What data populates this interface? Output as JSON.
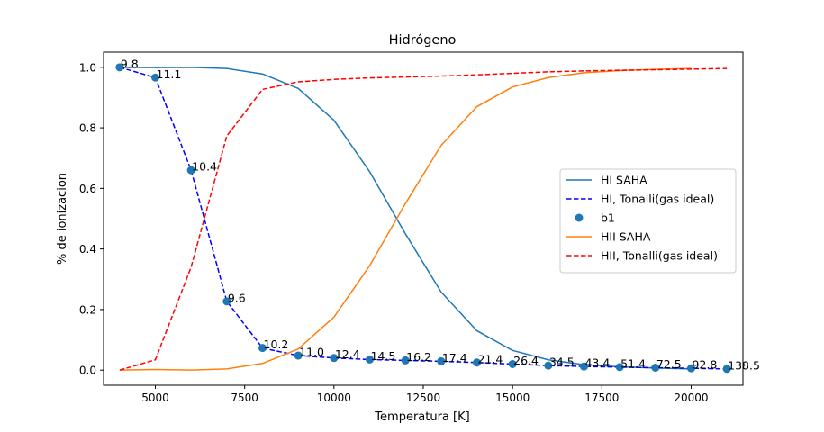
{
  "chart_data": {
    "type": "line",
    "title": "Hidrógeno",
    "xlabel": "Temperatura [K]",
    "ylabel": "% de ionizacion",
    "xlim": [
      3550,
      21450
    ],
    "ylim": [
      -0.05,
      1.05
    ],
    "xticks": [
      5000,
      7500,
      10000,
      12500,
      15000,
      17500,
      20000
    ],
    "xtick_labels": [
      "5000",
      "7500",
      "10000",
      "12500",
      "15000",
      "17500",
      "20000"
    ],
    "yticks": [
      0.0,
      0.2,
      0.4,
      0.6,
      0.8,
      1.0
    ],
    "ytick_labels": [
      "0.0",
      "0.2",
      "0.4",
      "0.6",
      "0.8",
      "1.0"
    ],
    "grid": false,
    "legend_position": "center-right",
    "series": [
      {
        "name": "HI SAHA",
        "style": "solid",
        "color": "#1f77b4",
        "x": [
          4000,
          5000,
          6000,
          7000,
          8000,
          9000,
          10000,
          11000,
          12000,
          13000,
          14000,
          15000,
          16000,
          17000,
          18000,
          19000,
          20000
        ],
        "y": [
          1.0,
          0.999,
          1.0,
          0.996,
          0.978,
          0.93,
          0.825,
          0.655,
          0.45,
          0.258,
          0.13,
          0.065,
          0.034,
          0.018,
          0.011,
          0.007,
          0.004
        ]
      },
      {
        "name": "HI, Tonalli(gas ideal)",
        "style": "dashed",
        "color": "#0000ff",
        "x": [
          4000,
          5000,
          6000,
          7000,
          8000,
          9000,
          10000,
          11000,
          12000,
          13000,
          14000,
          15000,
          16000,
          17000,
          18000,
          19000,
          20000,
          21000
        ],
        "y": [
          1.0,
          0.966,
          0.66,
          0.227,
          0.073,
          0.048,
          0.04,
          0.035,
          0.032,
          0.029,
          0.025,
          0.02,
          0.015,
          0.012,
          0.01,
          0.008,
          0.006,
          0.004
        ]
      },
      {
        "name": "b1",
        "style": "scatter",
        "color": "#1f77b4",
        "x": [
          4000,
          5000,
          6000,
          7000,
          8000,
          9000,
          10000,
          11000,
          12000,
          13000,
          14000,
          15000,
          16000,
          17000,
          18000,
          19000,
          20000,
          21000
        ],
        "y": [
          1.0,
          0.966,
          0.66,
          0.227,
          0.073,
          0.048,
          0.04,
          0.035,
          0.032,
          0.029,
          0.025,
          0.02,
          0.015,
          0.012,
          0.01,
          0.008,
          0.006,
          0.004
        ],
        "labels": [
          "9.8",
          "11.1",
          "10.4",
          "9.6",
          "10.2",
          "11.0",
          "12.4",
          "14.5",
          "16.2",
          "17.4",
          "21.4",
          "26.4",
          "34.5",
          "43.4",
          "51.4",
          "72.5",
          "92.8",
          "138.5"
        ]
      },
      {
        "name": "HII SAHA",
        "style": "solid",
        "color": "#ff7f0e",
        "x": [
          4000,
          5000,
          6000,
          7000,
          8000,
          9000,
          10000,
          11000,
          12000,
          13000,
          14000,
          15000,
          16000,
          17000,
          18000,
          19000,
          20000
        ],
        "y": [
          0.0,
          0.002,
          0.0,
          0.004,
          0.022,
          0.07,
          0.175,
          0.345,
          0.55,
          0.742,
          0.87,
          0.935,
          0.966,
          0.982,
          0.989,
          0.993,
          0.996
        ]
      },
      {
        "name": "HII, Tonalli(gas ideal)",
        "style": "dashed",
        "color": "#ff0000",
        "x": [
          4000,
          5000,
          6000,
          7000,
          8000,
          9000,
          10000,
          11000,
          12000,
          13000,
          14000,
          15000,
          16000,
          17000,
          18000,
          19000,
          20000,
          21000
        ],
        "y": [
          0.0,
          0.034,
          0.34,
          0.773,
          0.927,
          0.952,
          0.96,
          0.965,
          0.968,
          0.971,
          0.975,
          0.98,
          0.985,
          0.988,
          0.99,
          0.992,
          0.994,
          0.996
        ]
      }
    ],
    "legend_order": [
      0,
      1,
      2,
      3,
      4
    ]
  }
}
